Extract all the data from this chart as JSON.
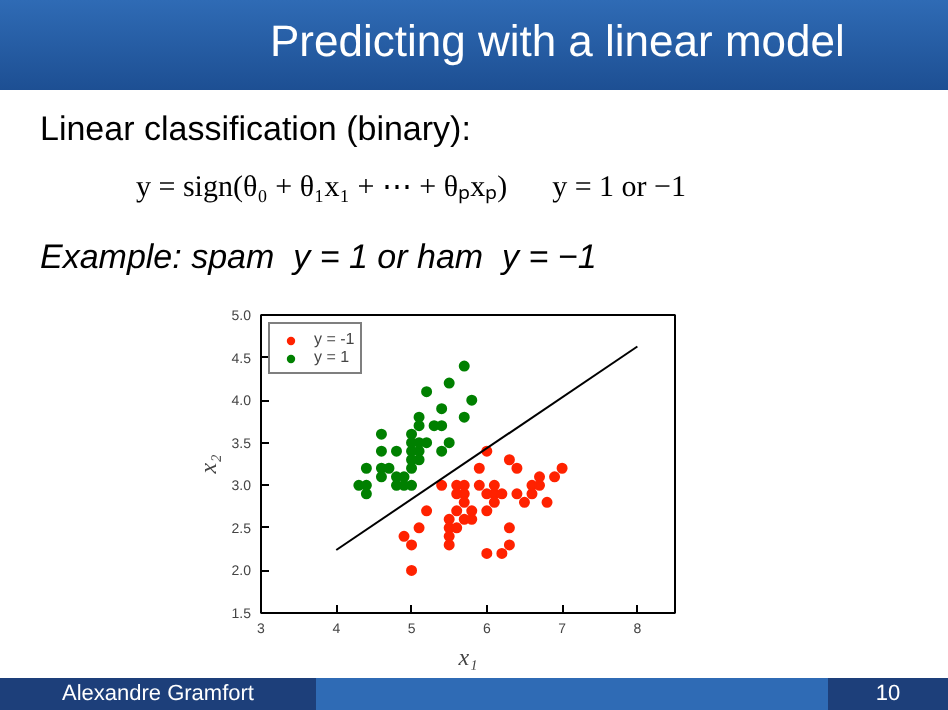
{
  "chart_data": {
    "type": "scatter",
    "title": "Predicting with a linear model",
    "annotations": [
      "Linear classification (binary):",
      "y = sign(θ₀ + θ₁x₁ + ⋯ + θₚxₚ)      y = 1 or −1",
      "Example: spam  y = 1 or ham  y = −1",
      "Alexandre Gramfort",
      "10"
    ],
    "xlabel": "x₁",
    "ylabel": "x₂",
    "xlim": [
      3,
      8.5
    ],
    "xticks": [
      3,
      4,
      5,
      6,
      7,
      8
    ],
    "ylim": [
      1.5,
      5.0
    ],
    "yticks": [
      {
        "value": 1.5,
        "label": "1.5"
      },
      {
        "value": 2,
        "label": "2.0"
      },
      {
        "value": 2.5,
        "label": "2.5"
      },
      {
        "value": 3,
        "label": "3.0"
      },
      {
        "value": 3.5,
        "label": "3.5"
      },
      {
        "value": 4,
        "label": "4.0"
      },
      {
        "value": 4.5,
        "label": "4.5"
      },
      {
        "value": 5,
        "label": "5.0"
      }
    ],
    "grid": false,
    "legend": "top left",
    "marker": "circle",
    "series": [
      {
        "name": "y = -1",
        "color": "#ff2200",
        "x": [
          4.9,
          5.0,
          5.0,
          5.1,
          5.2,
          5.4,
          5.5,
          5.5,
          5.5,
          5.5,
          5.6,
          5.6,
          5.6,
          5.6,
          5.7,
          5.7,
          5.7,
          5.7,
          5.8,
          5.8,
          5.9,
          5.9,
          6.0,
          6.0,
          6.0,
          6.0,
          6.1,
          6.1,
          6.1,
          6.2,
          6.2,
          6.3,
          6.3,
          6.3,
          6.4,
          6.4,
          6.5,
          6.6,
          6.6,
          6.7,
          6.7,
          6.8,
          6.9,
          7.0
        ],
        "values": [
          2.4,
          2.3,
          2.0,
          2.5,
          2.7,
          3.0,
          2.6,
          2.5,
          2.4,
          2.3,
          3.0,
          2.9,
          2.7,
          2.5,
          3.0,
          2.9,
          2.8,
          2.6,
          2.7,
          2.6,
          3.2,
          3.0,
          3.4,
          2.9,
          2.7,
          2.2,
          3.0,
          2.9,
          2.8,
          2.9,
          2.2,
          3.3,
          2.5,
          2.3,
          3.2,
          2.9,
          2.8,
          2.9,
          3.0,
          3.1,
          3.0,
          2.8,
          3.1,
          3.2
        ]
      },
      {
        "name": "y = 1",
        "color": "#008000",
        "x": [
          4.3,
          4.4,
          4.4,
          4.4,
          4.6,
          4.6,
          4.6,
          4.6,
          4.7,
          4.8,
          4.8,
          4.8,
          4.9,
          4.9,
          5.0,
          5.0,
          5.0,
          5.0,
          5.0,
          5.0,
          5.1,
          5.1,
          5.1,
          5.1,
          5.1,
          5.2,
          5.2,
          5.3,
          5.4,
          5.4,
          5.4,
          5.5,
          5.5,
          5.7,
          5.7,
          5.8
        ],
        "values": [
          3.0,
          3.0,
          2.9,
          3.2,
          3.6,
          3.4,
          3.2,
          3.1,
          3.2,
          3.4,
          3.1,
          3.0,
          3.1,
          3.0,
          3.0,
          3.2,
          3.3,
          3.4,
          3.5,
          3.6,
          3.4,
          3.3,
          3.5,
          3.7,
          3.8,
          3.5,
          4.1,
          3.7,
          3.4,
          3.7,
          3.9,
          3.5,
          4.2,
          3.8,
          4.4,
          4.0
        ]
      },
      {
        "type": "line",
        "marker": "none",
        "color": "#000000",
        "x": [
          4.0,
          8.0
        ],
        "values": [
          2.24,
          4.63
        ]
      }
    ]
  }
}
